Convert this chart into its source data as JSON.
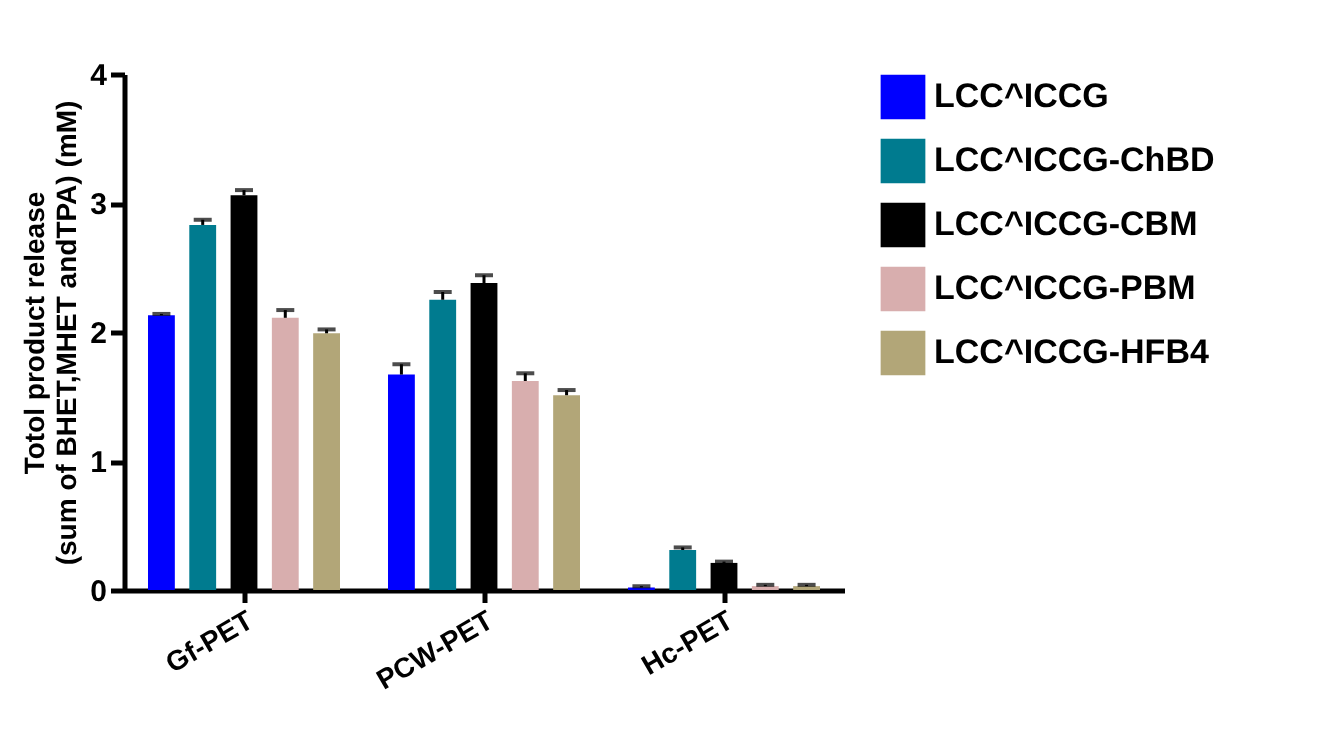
{
  "chart_data": {
    "type": "bar",
    "ylabel": "Totol product release\n(sum of BHET,MHET andTPA) (mM)",
    "categories": [
      "Gf-PET",
      "PCW-PET",
      "Hc-PET"
    ],
    "series": [
      {
        "name": "LCC^ICCG",
        "color": "#0000ff",
        "values": [
          2.13,
          1.67,
          0.02
        ],
        "errors": [
          0.01,
          0.08,
          0.01
        ]
      },
      {
        "name": "LCC^ICCG-ChBD",
        "color": "#007b8f",
        "values": [
          2.83,
          2.25,
          0.31
        ],
        "errors": [
          0.04,
          0.06,
          0.02
        ]
      },
      {
        "name": "LCC^ICCG-CBM",
        "color": "#000000",
        "values": [
          3.06,
          2.38,
          0.21
        ],
        "errors": [
          0.04,
          0.06,
          0.01
        ]
      },
      {
        "name": "LCC^ICCG-PBM",
        "color": "#d8aeae",
        "values": [
          2.11,
          1.62,
          0.03
        ],
        "errors": [
          0.06,
          0.06,
          0.01
        ]
      },
      {
        "name": "LCC^ICCG-HFB4",
        "color": "#b2a678",
        "values": [
          1.99,
          1.51,
          0.03
        ],
        "errors": [
          0.03,
          0.04,
          0.01
        ]
      }
    ],
    "ylim": [
      0,
      4
    ],
    "yticks": [
      0,
      1,
      2,
      3,
      4
    ],
    "grid": false,
    "legend": "right"
  }
}
